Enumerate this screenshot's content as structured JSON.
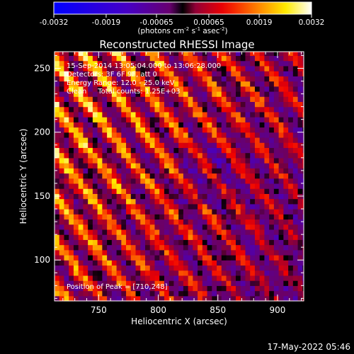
{
  "chart_data": {
    "type": "heatmap",
    "title": "Reconstructed RHESSI Image",
    "xlabel": "Heliocentric X (arcsec)",
    "ylabel": "Heliocentric Y (arcsec)",
    "xlim": [
      713,
      922
    ],
    "ylim": [
      68,
      263
    ],
    "x_ticks": [
      750,
      800,
      850,
      900
    ],
    "y_ticks": [
      100,
      150,
      200,
      250
    ],
    "x_tick_labels": [
      "750",
      "800",
      "850",
      "900"
    ],
    "y_tick_labels": [
      "100",
      "150",
      "200",
      "250"
    ],
    "grid": false,
    "colormap": "blue-purple-red-yellow-white (IDL colour table 5 style)",
    "colorbar": {
      "range": [
        -0.0032,
        0.0032
      ],
      "ticks": [
        -0.0032,
        -0.0019,
        -0.00065,
        0.00065,
        0.0019,
        0.0032
      ],
      "tick_labels": [
        "-0.0032",
        "-0.0019",
        "-0.00065",
        "0.00065",
        "0.0019",
        "0.0032"
      ],
      "unit_label_parts": [
        "(photons cm",
        "-2",
        " s",
        "-1",
        " asec",
        "-2",
        ")"
      ]
    },
    "annotations": [
      "15-Sep-2014 13:05:04.000 to 13:06:28.000",
      "Detectors: 3F 6F 9F, att 0",
      "Energy Range: 12.0 - 25.0 keV",
      "Clean     Total counts: 1.25E+03"
    ],
    "peak_label": "Position of Peak = [710,248]",
    "peak": {
      "x": 710,
      "y": 248
    },
    "pixel_size_arcsec": 4,
    "image_structure": "diagonal stripes running from upper-left to lower-right, brightest toward the upper-left corner, periodic negative (blue) lobes between stripes",
    "timestamp": "17-May-2022 05:46"
  }
}
